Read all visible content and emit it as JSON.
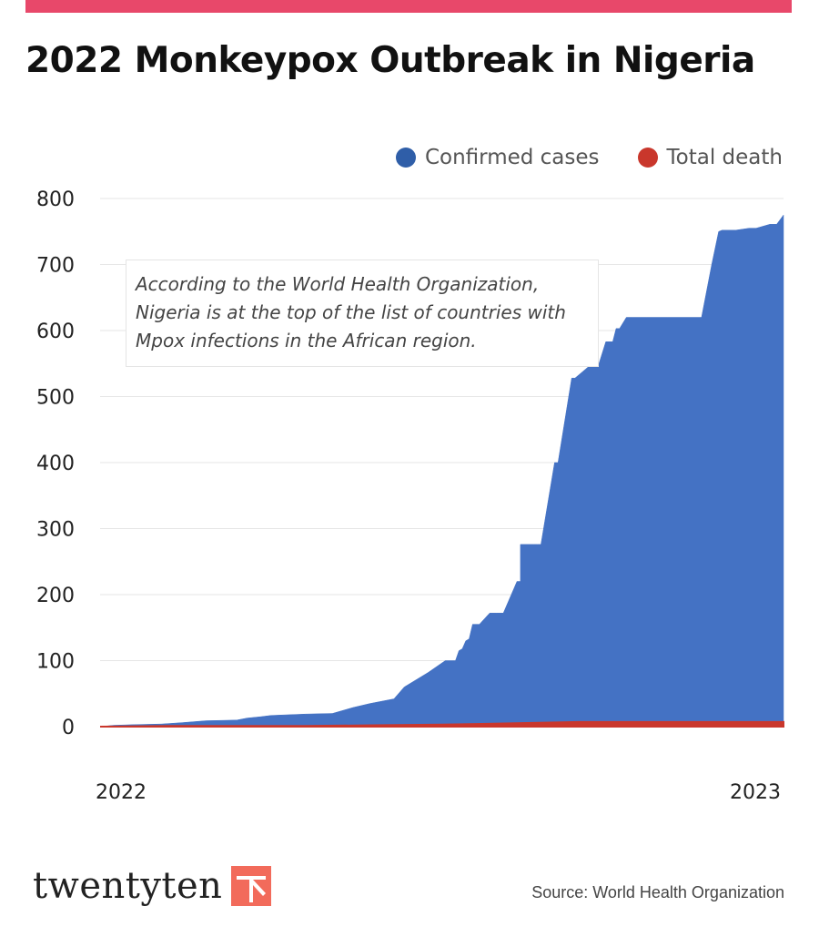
{
  "title": "2022 Monkeypox Outbreak in Nigeria",
  "colors": {
    "accent_bar": "#e8486a",
    "cases": "#4472c4",
    "deaths": "#c9372c",
    "grid": "#e6e6e6",
    "logo": "#f26b5b"
  },
  "legend": {
    "cases_label": "Confirmed cases",
    "deaths_label": "Total death",
    "position": "top-right"
  },
  "annotation": "According to the World Health Organization, Nigeria is at the top of the list of countries with Mpox infections in the African region.",
  "source": "Source: World Health Organization",
  "logo": {
    "text": "twentyten",
    "icon": "twentyten-logo-icon"
  },
  "chart_data": {
    "type": "area",
    "title": "2022 Monkeypox Outbreak in Nigeria",
    "xlabel": "",
    "ylabel": "",
    "x_tick_labels": [
      "2022",
      "2023"
    ],
    "xlim": [
      0,
      1
    ],
    "y_ticks": [
      0,
      100,
      200,
      300,
      400,
      500,
      600,
      700,
      800
    ],
    "ylim": [
      0,
      800
    ],
    "grid": "horizontal",
    "series": [
      {
        "name": "Confirmed cases",
        "x": [
          0,
          0.02,
          0.05,
          0.09,
          0.12,
          0.155,
          0.2,
          0.215,
          0.235,
          0.25,
          0.3,
          0.34,
          0.37,
          0.395,
          0.43,
          0.445,
          0.48,
          0.505,
          0.52,
          0.525,
          0.53,
          0.535,
          0.54,
          0.545,
          0.55,
          0.555,
          0.57,
          0.58,
          0.59,
          0.61,
          0.615,
          0.615,
          0.635,
          0.64,
          0.645,
          0.665,
          0.67,
          0.69,
          0.695,
          0.72,
          0.73,
          0.74,
          0.75,
          0.755,
          0.76,
          0.77,
          0.775,
          0.78,
          0.79,
          0.8,
          0.82,
          0.83,
          0.88,
          0.895,
          0.905,
          0.91,
          0.93,
          0.95,
          0.96,
          0.98,
          0.99,
          1.0
        ],
        "values": [
          0,
          2,
          3,
          4,
          6,
          9,
          10,
          13,
          15,
          17,
          19,
          20,
          29,
          35,
          42,
          60,
          82,
          100,
          100,
          115,
          118,
          130,
          133,
          155,
          155,
          155,
          172,
          172,
          172,
          220,
          220,
          276,
          276,
          276,
          276,
          400,
          400,
          528,
          528,
          550,
          550,
          583,
          583,
          603,
          603,
          620,
          620,
          620,
          620,
          620,
          620,
          620,
          620,
          700,
          750,
          752,
          752,
          755,
          755,
          761,
          761,
          775
        ]
      },
      {
        "name": "Total death",
        "x": [
          0,
          0.1,
          0.2,
          0.3,
          0.4,
          0.5,
          0.55,
          0.6,
          0.65,
          0.7,
          0.8,
          0.9,
          1.0
        ],
        "values": [
          0,
          1,
          1,
          1,
          2,
          3,
          4,
          5,
          6,
          7,
          7,
          7,
          7
        ]
      }
    ]
  }
}
